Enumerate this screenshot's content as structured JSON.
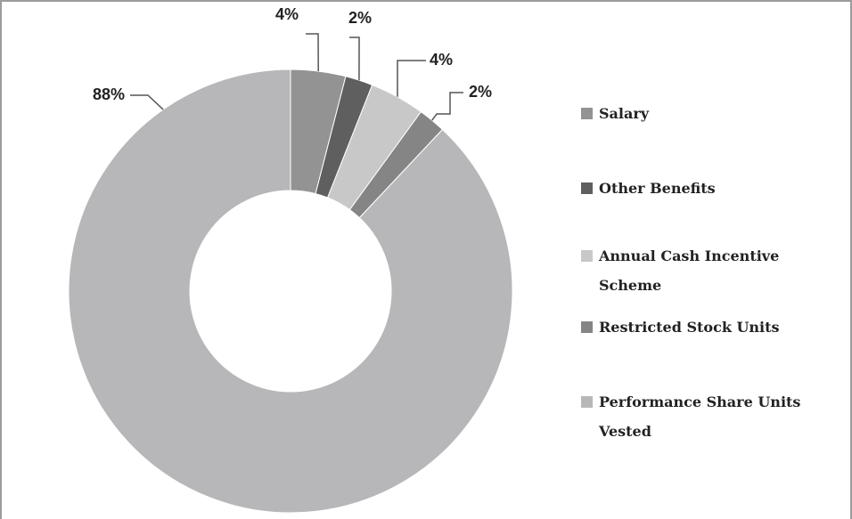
{
  "chart_data": {
    "type": "donut",
    "categories": [
      "Salary",
      "Other Benefits",
      "Annual Cash Incentive Scheme",
      "Restricted Stock Units",
      "Performance Share Units Vested"
    ],
    "values": [
      4,
      2,
      4,
      2,
      88
    ],
    "value_labels": [
      "4%",
      "2%",
      "4%",
      "2%",
      "88%"
    ],
    "colors": [
      "#939393",
      "#5f5f5f",
      "#c8c8c8",
      "#858585",
      "#b7b7b9"
    ],
    "legend": "right"
  }
}
